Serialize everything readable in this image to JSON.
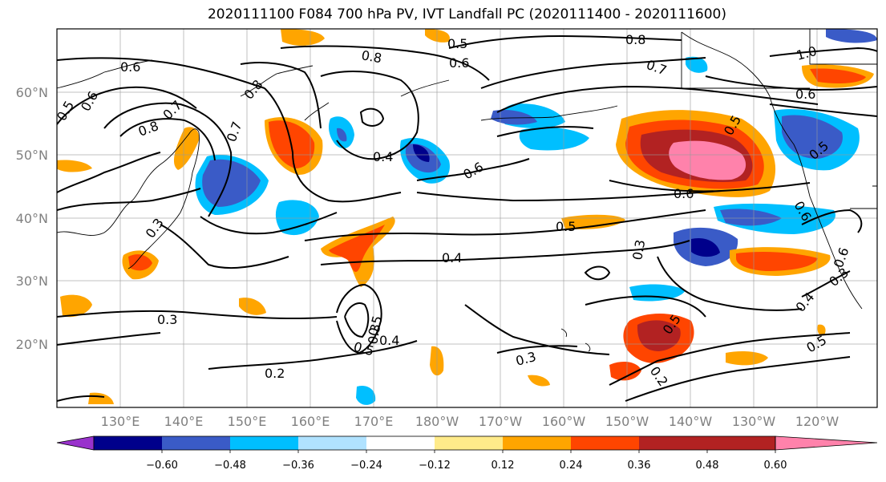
{
  "title": "2020111100 F084 700 hPa PV, IVT Landfall PC (2020111400 - 2020111600)",
  "lat_labels": [
    "60°N",
    "50°N",
    "40°N",
    "30°N",
    "20°N"
  ],
  "lon_labels": [
    "130°E",
    "140°E",
    "150°E",
    "160°E",
    "170°E",
    "180°W",
    "170°W",
    "160°W",
    "150°W",
    "140°W",
    "130°W",
    "120°W"
  ],
  "colorbar": {
    "colors": [
      "#9932cc",
      "#00008b",
      "#3a5bc7",
      "#00bfff",
      "#b0e2ff",
      "#ffffff",
      "#ffeb8a",
      "#ffa500",
      "#ff4500",
      "#b22222",
      "#ff82ab"
    ],
    "tick_labels": [
      "−0.60",
      "−0.48",
      "−0.36",
      "−0.24",
      "−0.12",
      "0.12",
      "0.24",
      "0.36",
      "0.48",
      "0.60"
    ]
  },
  "contour_labels": [
    "0.6",
    "0.5",
    "0.6",
    "0.8",
    "0.7",
    "0.8",
    "0.7",
    "0.3",
    "0.5",
    "0.8",
    "0.6",
    "0.4",
    "0.6",
    "0.5",
    "0.4",
    "0.5",
    "0.3",
    "0.3",
    "0.2",
    "0.5",
    "0.4",
    "0.3",
    "0.8",
    "0.7",
    "1.0",
    "0.6",
    "0.6",
    "0.5",
    "0.5",
    "0.3",
    "0.5",
    "0.2",
    "0.4",
    "0.5",
    "0.6",
    "0.3",
    "0.6"
  ]
}
